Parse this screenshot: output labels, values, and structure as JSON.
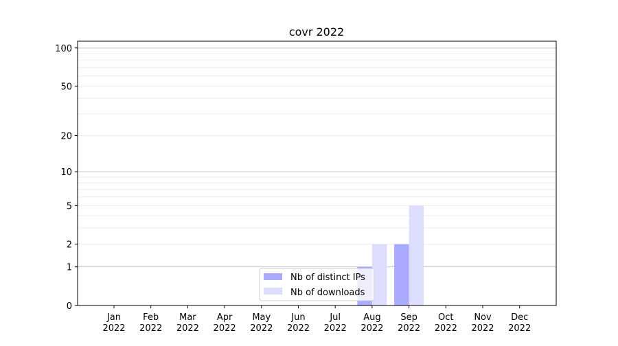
{
  "chart_data": {
    "type": "bar",
    "title": "covr 2022",
    "xlabel": "",
    "ylabel": "",
    "y_scale": "log10(1+y)",
    "ylim": [
      0,
      113
    ],
    "y_ticks": [
      0,
      1,
      2,
      5,
      10,
      20,
      50,
      100
    ],
    "y_tick_labels": [
      "0",
      "1",
      "2",
      "5",
      "10",
      "20",
      "50",
      "100"
    ],
    "grid": true,
    "categories": [
      "Jan\n2022",
      "Feb\n2022",
      "Mar\n2022",
      "Apr\n2022",
      "May\n2022",
      "Jun\n2022",
      "Jul\n2022",
      "Aug\n2022",
      "Sep\n2022",
      "Oct\n2022",
      "Nov\n2022",
      "Dec\n2022"
    ],
    "category_lines": [
      [
        "Jan",
        "2022"
      ],
      [
        "Feb",
        "2022"
      ],
      [
        "Mar",
        "2022"
      ],
      [
        "Apr",
        "2022"
      ],
      [
        "May",
        "2022"
      ],
      [
        "Jun",
        "2022"
      ],
      [
        "Jul",
        "2022"
      ],
      [
        "Aug",
        "2022"
      ],
      [
        "Sep",
        "2022"
      ],
      [
        "Oct",
        "2022"
      ],
      [
        "Nov",
        "2022"
      ],
      [
        "Dec",
        "2022"
      ]
    ],
    "series": [
      {
        "name": "Nb of distinct IPs",
        "color": "#aaaaff",
        "values": [
          0,
          0,
          0,
          0,
          0,
          0,
          0,
          1,
          2,
          0,
          0,
          0
        ]
      },
      {
        "name": "Nb of downloads",
        "color": "#ddddff",
        "values": [
          0,
          0,
          0,
          0,
          0,
          0,
          0,
          2,
          5,
          0,
          0,
          0
        ]
      }
    ],
    "legend_position": "lower-center"
  }
}
